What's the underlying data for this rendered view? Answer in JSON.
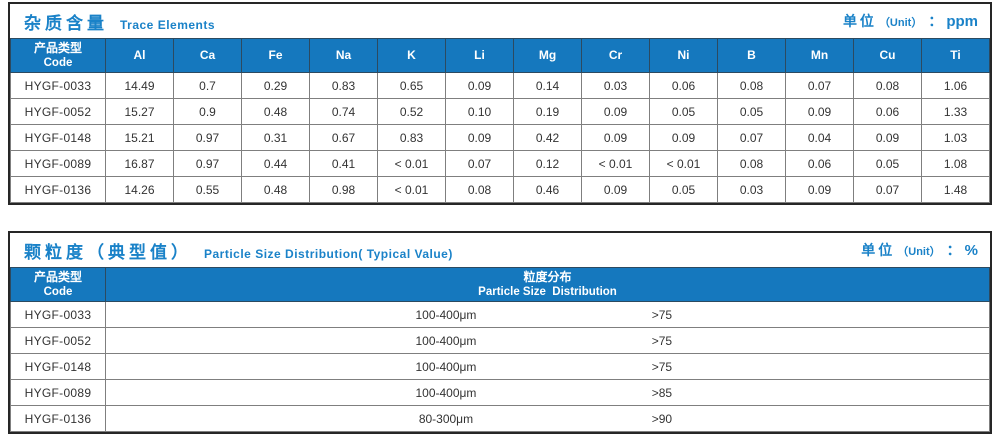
{
  "accent_color": "#1a82c8",
  "header_bg_color": "#1578be",
  "grid_border_color": "#7f7f7f",
  "outer_border_color": "#262626",
  "trace": {
    "title_zh": "杂质含量",
    "title_en": "Trace Elements",
    "unit": {
      "label": "单位",
      "paren": "（Unit）",
      "colon": "：",
      "value": "ppm"
    },
    "code_header": {
      "zh": "产品类型",
      "en": "Code"
    },
    "element_columns": [
      "Al",
      "Ca",
      "Fe",
      "Na",
      "K",
      "Li",
      "Mg",
      "Cr",
      "Ni",
      "B",
      "Mn",
      "Cu",
      "Ti"
    ],
    "rows": [
      {
        "code": "HYGF-0033",
        "values": [
          "14.49",
          "0.7",
          "0.29",
          "0.83",
          "0.65",
          "0.09",
          "0.14",
          "0.03",
          "0.06",
          "0.08",
          "0.07",
          "0.08",
          "1.06"
        ]
      },
      {
        "code": "HYGF-0052",
        "values": [
          "15.27",
          "0.9",
          "0.48",
          "0.74",
          "0.52",
          "0.10",
          "0.19",
          "0.09",
          "0.05",
          "0.05",
          "0.09",
          "0.06",
          "1.33"
        ]
      },
      {
        "code": "HYGF-0148",
        "values": [
          "15.21",
          "0.97",
          "0.31",
          "0.67",
          "0.83",
          "0.09",
          "0.42",
          "0.09",
          "0.09",
          "0.07",
          "0.04",
          "0.09",
          "1.03"
        ]
      },
      {
        "code": "HYGF-0089",
        "values": [
          "16.87",
          "0.97",
          "0.44",
          "0.41",
          "< 0.01",
          "0.07",
          "0.12",
          "< 0.01",
          "< 0.01",
          "0.08",
          "0.06",
          "0.05",
          "1.08"
        ]
      },
      {
        "code": "HYGF-0136",
        "values": [
          "14.26",
          "0.55",
          "0.48",
          "0.98",
          "< 0.01",
          "0.08",
          "0.46",
          "0.09",
          "0.05",
          "0.03",
          "0.09",
          "0.07",
          "1.48"
        ]
      }
    ]
  },
  "particle": {
    "title_zh": "颗粒度（典型值）",
    "title_en": "Particle Size Distribution( Typical Value)",
    "unit": {
      "label": "单位",
      "paren": "（Unit）",
      "colon": "：",
      "value": "%"
    },
    "code_header": {
      "zh": "产品类型",
      "en": "Code"
    },
    "dist_header": {
      "zh": "粒度分布",
      "en": "Particle Size  Distribution"
    },
    "rows": [
      {
        "code": "HYGF-0033",
        "range": "100-400μm",
        "value": ">75"
      },
      {
        "code": "HYGF-0052",
        "range": "100-400μm",
        "value": ">75"
      },
      {
        "code": "HYGF-0148",
        "range": "100-400μm",
        "value": ">75"
      },
      {
        "code": "HYGF-0089",
        "range": "100-400μm",
        "value": ">85"
      },
      {
        "code": "HYGF-0136",
        "range": "80-300μm",
        "value": ">90"
      }
    ]
  }
}
